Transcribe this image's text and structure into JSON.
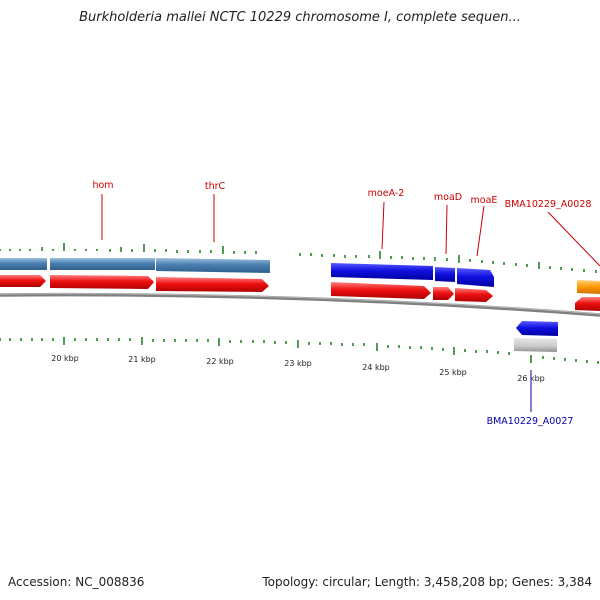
{
  "title": "Burkholderia mallei NCTC 10229 chromosome I, complete sequen...",
  "footer": {
    "accession": "Accession: NC_008836",
    "summary": "Topology: circular; Length: 3,458,208 bp; Genes: 3,384"
  },
  "colors": {
    "gene_steelblue": "#4a7fb0",
    "gene_blue": "#1010e0",
    "cds_red": "#ee1111",
    "orange": "#ff9900",
    "gray": "#c8c8c8",
    "backbone": "#808080",
    "tick_green": "#1a7a1a",
    "label_red": "#cc0000",
    "label_blue": "#0000aa"
  },
  "scale_labels": [
    "20 kbp",
    "21 kbp",
    "22 kbp",
    "23 kbp",
    "24 kbp",
    "25 kbp",
    "26 kbp"
  ],
  "gene_labels": [
    {
      "text": "hom",
      "color": "red"
    },
    {
      "text": "thrC",
      "color": "red"
    },
    {
      "text": "moeA-2",
      "color": "red"
    },
    {
      "text": "moaD",
      "color": "red"
    },
    {
      "text": "moaE",
      "color": "red"
    },
    {
      "text": "BMA10229_A0028",
      "color": "red"
    },
    {
      "text": "BMA10229_A0027",
      "color": "blue"
    }
  ]
}
